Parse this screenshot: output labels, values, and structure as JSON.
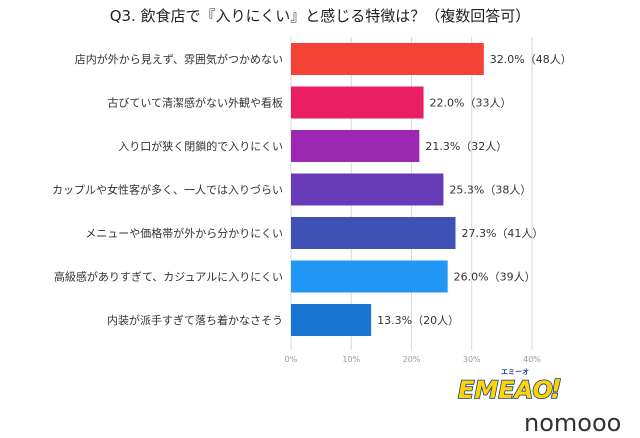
{
  "chart_data": {
    "type": "bar",
    "orientation": "horizontal",
    "title": "Q3. 飲食店で『入りにくい』と感じる特徴は？（複数回答可）",
    "categories": [
      "店内が外から見えず、雰囲気がつかめない",
      "古びていて清潔感がない外観や看板",
      "入り口が狭く閉鎖的で入りにくい",
      "カップルや女性客が多く、一人では入りづらい",
      "メニューや価格帯が外から分かりにくい",
      "高級感がありすぎて、カジュアルに入りにくい",
      "内装が派手すぎて落ち着かなさそう"
    ],
    "values": [
      32.0,
      22.0,
      21.3,
      25.3,
      27.3,
      26.0,
      13.3
    ],
    "value_labels": [
      "32.0%（48人）",
      "22.0%（33人）",
      "21.3%（32人）",
      "25.3%（38人）",
      "27.3%（41人）",
      "26.0%（39人）",
      "13.3%（20人）"
    ],
    "colors": [
      "#f44336",
      "#e91e63",
      "#9c27b0",
      "#673ab7",
      "#3f51b5",
      "#2196f3",
      "#1976d2"
    ],
    "xlim": [
      0,
      40
    ],
    "x_ticks": [
      "0%",
      "10%",
      "20%",
      "30%",
      "40%"
    ],
    "grid": true,
    "xlabel": "",
    "ylabel": ""
  },
  "logo": {
    "text": "EMEAO!",
    "kana": "エミーオ",
    "color": "#1a3c8f",
    "accent": "#ffd400"
  },
  "watermark": "nomooo"
}
